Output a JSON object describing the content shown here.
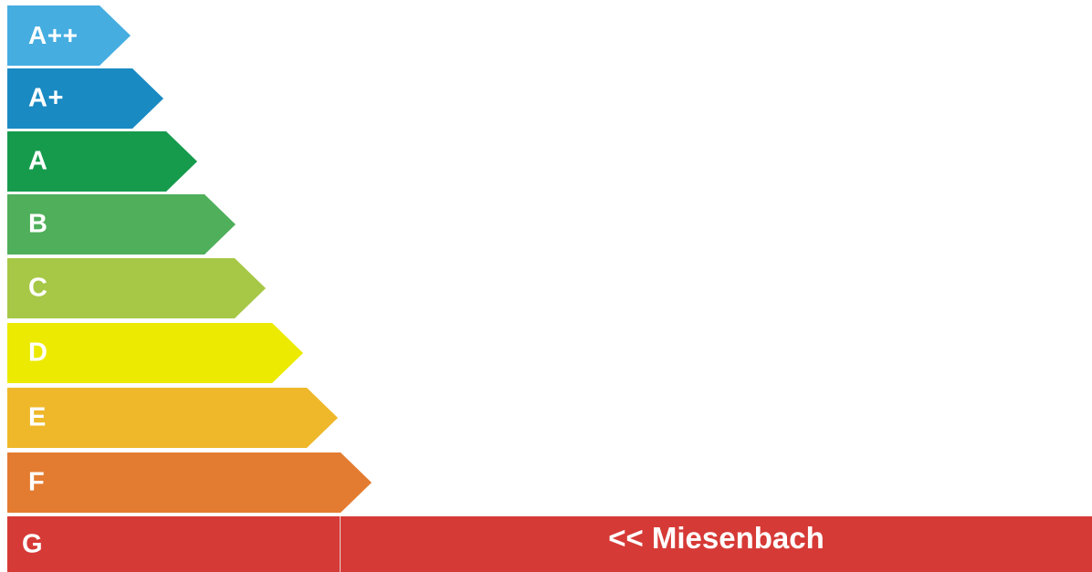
{
  "ratings": [
    {
      "label": "A++",
      "color": "#45ade0"
    },
    {
      "label": "A+",
      "color": "#1a8ac2"
    },
    {
      "label": "A",
      "color": "#169b4d"
    },
    {
      "label": "B",
      "color": "#4faf5b"
    },
    {
      "label": "C",
      "color": "#a6c846"
    },
    {
      "label": "D",
      "color": "#ecea00"
    },
    {
      "label": "E",
      "color": "#eeb82a"
    },
    {
      "label": "F",
      "color": "#e37c31"
    },
    {
      "label": "G",
      "color": "#d63a36"
    }
  ],
  "indicator": {
    "text": "<< Miesenbach",
    "color": "#d63a36",
    "points_to": "G"
  }
}
